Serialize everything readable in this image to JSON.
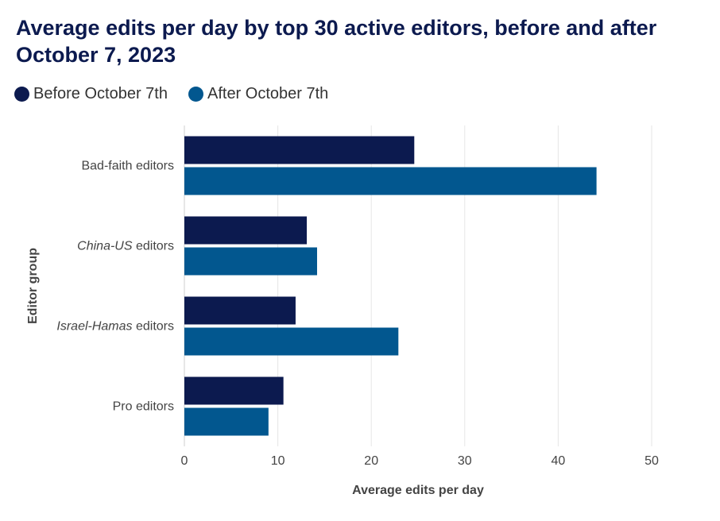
{
  "chart_data": {
    "type": "bar",
    "orientation": "horizontal",
    "title": "Average edits per day by top 30 active editors, before and after October 7, 2023",
    "xlabel": "Average edits per day",
    "ylabel": "Editor group",
    "categories": [
      {
        "italic": "",
        "rest": "Bad-faith editors"
      },
      {
        "italic": "China-US",
        "rest": " editors"
      },
      {
        "italic": "Israel-Hamas",
        "rest": " editors"
      },
      {
        "italic": "",
        "rest": "Pro editors"
      }
    ],
    "series": [
      {
        "name": "Before October 7th",
        "color": "#0c1a4f",
        "values": [
          24.6,
          13.1,
          11.9,
          10.6
        ]
      },
      {
        "name": "After October 7th",
        "color": "#02578f",
        "values": [
          44.1,
          14.2,
          22.9,
          9.0
        ]
      }
    ],
    "xlim": [
      0,
      50
    ],
    "xticks": [
      0,
      10,
      20,
      30,
      40,
      50
    ],
    "grid": "vertical",
    "legend_position": "top-left"
  }
}
